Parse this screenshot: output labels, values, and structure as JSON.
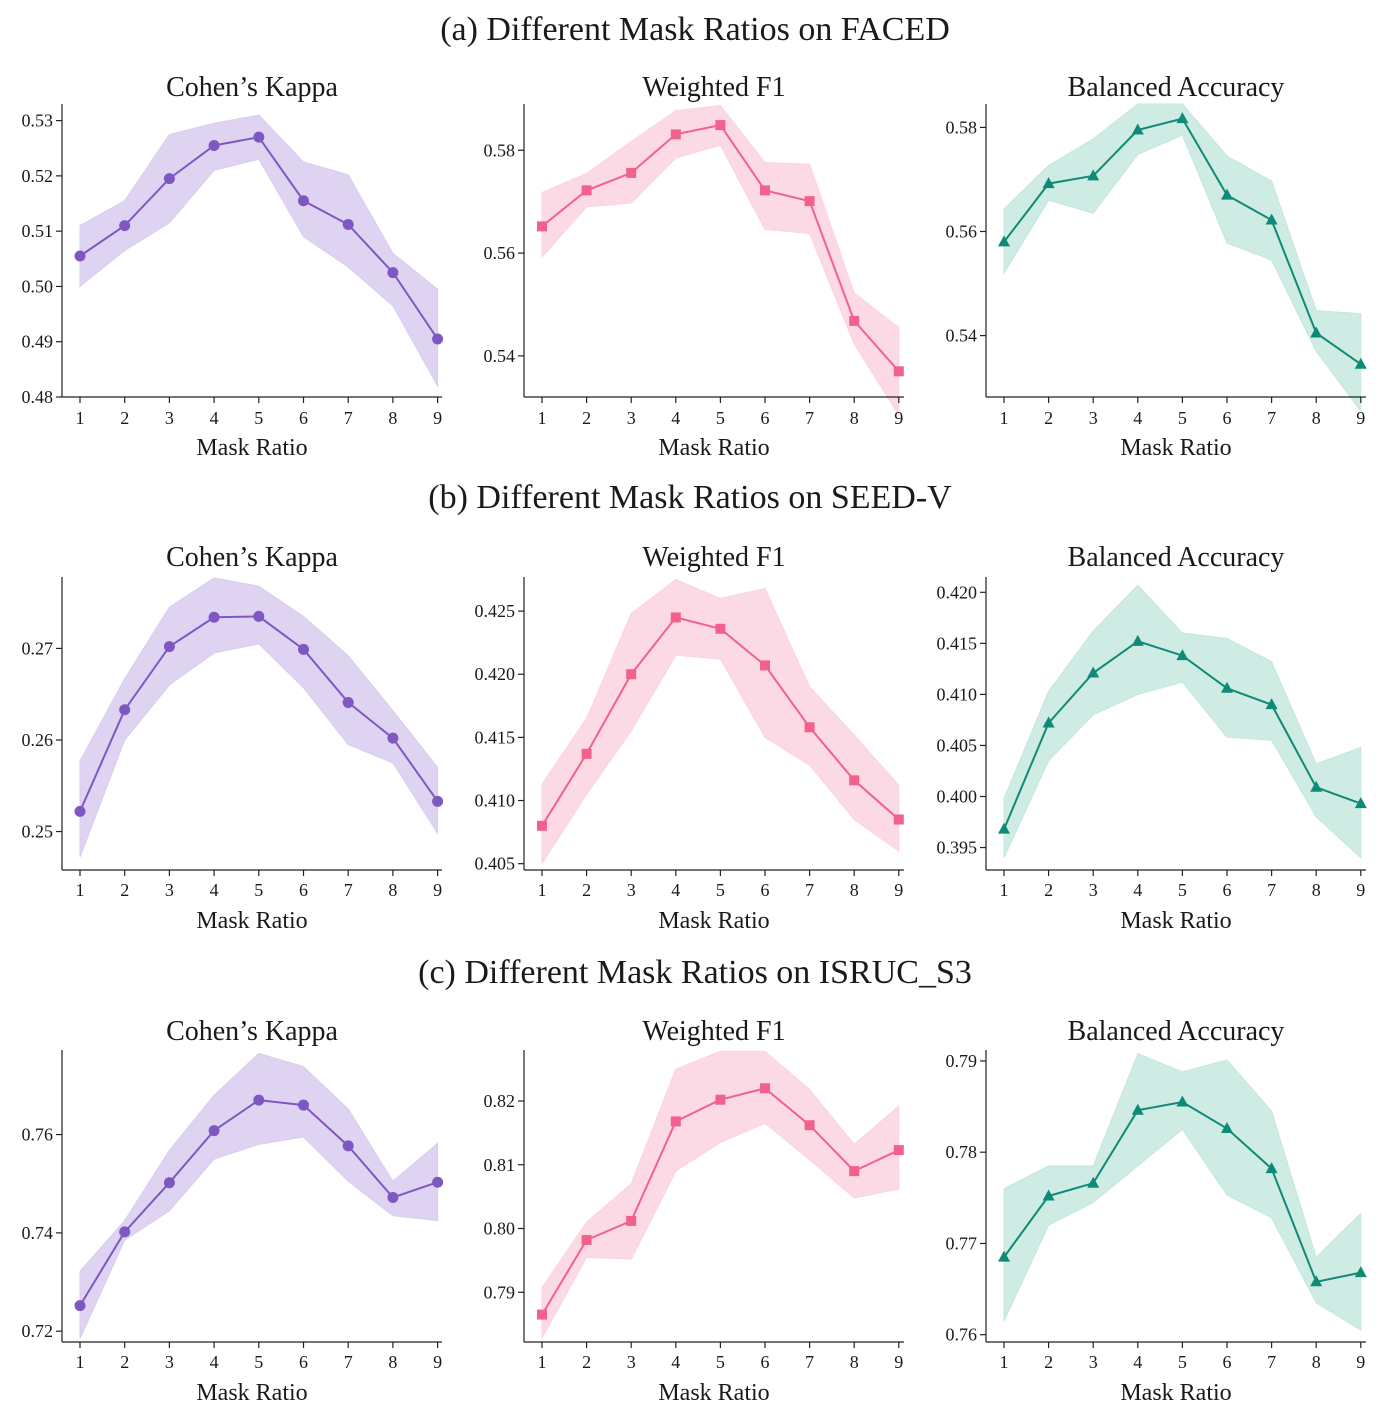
{
  "row_titles": [
    "(a) Different Mask Ratios on FACED",
    "(b) Different Mask Ratios on SEED-V",
    "(c) Different Mask Ratios on ISRUC_S3"
  ],
  "chart_data": [
    {
      "type": "line",
      "row": 0,
      "col": 0,
      "title": "Cohen’s Kappa",
      "xlabel": "Mask Ratio",
      "ylabel": "",
      "x": [
        1,
        2,
        3,
        4,
        5,
        6,
        7,
        8,
        9
      ],
      "series": [
        {
          "name": "Cohen’s Kappa",
          "values": [
            0.5055,
            0.511,
            0.5195,
            0.5255,
            0.527,
            0.5155,
            0.5112,
            0.5025,
            0.4905
          ],
          "lower": [
            0.5,
            0.5065,
            0.5115,
            0.521,
            0.523,
            0.509,
            0.5035,
            0.4965,
            0.482
          ],
          "upper": [
            0.511,
            0.5155,
            0.5275,
            0.5295,
            0.531,
            0.5225,
            0.5202,
            0.506,
            0.4995
          ]
        }
      ],
      "ylim": [
        0.48,
        0.533
      ],
      "yticks": [
        0.48,
        0.49,
        0.5,
        0.51,
        0.52,
        0.53
      ],
      "ytick_labels": [
        "0.48",
        "0.49",
        "0.50",
        "0.51",
        "0.52",
        "0.53"
      ],
      "color": "#7e57c2",
      "fill": "#d8cdef",
      "marker": "circle"
    },
    {
      "type": "line",
      "row": 0,
      "col": 1,
      "title": "Weighted F1",
      "xlabel": "Mask Ratio",
      "ylabel": "",
      "x": [
        1,
        2,
        3,
        4,
        5,
        6,
        7,
        8,
        9
      ],
      "series": [
        {
          "name": "Weighted F1",
          "values": [
            0.5652,
            0.5722,
            0.5756,
            0.5831,
            0.5849,
            0.5722,
            0.5701,
            0.5468,
            0.537
          ],
          "lower": [
            0.5592,
            0.569,
            0.5697,
            0.5785,
            0.581,
            0.5646,
            0.5638,
            0.5423,
            0.5285
          ],
          "upper": [
            0.5718,
            0.5755,
            0.5817,
            0.5877,
            0.5887,
            0.5776,
            0.5773,
            0.5522,
            0.5455
          ]
        }
      ],
      "ylim": [
        0.532,
        0.589
      ],
      "yticks": [
        0.54,
        0.56,
        0.58
      ],
      "ytick_labels": [
        "0.54",
        "0.56",
        "0.58"
      ],
      "color": "#f2618c",
      "fill": "#fbd3e0",
      "marker": "square"
    },
    {
      "type": "line",
      "row": 0,
      "col": 2,
      "title": "Balanced Accuracy",
      "xlabel": "Mask Ratio",
      "ylabel": "",
      "x": [
        1,
        2,
        3,
        4,
        5,
        6,
        7,
        8,
        9
      ],
      "series": [
        {
          "name": "Balanced Accuracy",
          "values": [
            0.558,
            0.5692,
            0.5707,
            0.5795,
            0.5817,
            0.567,
            0.5622,
            0.5405,
            0.5345
          ],
          "lower": [
            0.552,
            0.566,
            0.5635,
            0.5748,
            0.5785,
            0.5578,
            0.5545,
            0.537,
            0.5255
          ],
          "upper": [
            0.5643,
            0.5727,
            0.5778,
            0.5845,
            0.5845,
            0.5745,
            0.5697,
            0.5448,
            0.5442
          ]
        }
      ],
      "ylim": [
        0.5282,
        0.5845
      ],
      "yticks": [
        0.54,
        0.56,
        0.58
      ],
      "ytick_labels": [
        "0.54",
        "0.56",
        "0.58"
      ],
      "color": "#0f8a76",
      "fill": "#c5e7df",
      "marker": "triangle"
    },
    {
      "type": "line",
      "row": 1,
      "col": 0,
      "title": "Cohen’s Kappa",
      "xlabel": "Mask Ratio",
      "ylabel": "",
      "x": [
        1,
        2,
        3,
        4,
        5,
        6,
        7,
        8,
        9
      ],
      "series": [
        {
          "name": "Cohen’s Kappa",
          "values": [
            0.2522,
            0.2633,
            0.2702,
            0.2734,
            0.2735,
            0.2699,
            0.2641,
            0.2602,
            0.2533
          ],
          "lower": [
            0.2472,
            0.26,
            0.266,
            0.2695,
            0.2705,
            0.2657,
            0.2595,
            0.2575,
            0.2498
          ],
          "upper": [
            0.2577,
            0.2667,
            0.2745,
            0.2777,
            0.2768,
            0.2735,
            0.2692,
            0.2632,
            0.257
          ]
        }
      ],
      "ylim": [
        0.2458,
        0.2778
      ],
      "yticks": [
        0.25,
        0.26,
        0.27
      ],
      "ytick_labels": [
        "0.25",
        "0.26",
        "0.27"
      ],
      "color": "#7e57c2",
      "fill": "#d8cdef",
      "marker": "circle"
    },
    {
      "type": "line",
      "row": 1,
      "col": 1,
      "title": "Weighted F1",
      "xlabel": "Mask Ratio",
      "ylabel": "",
      "x": [
        1,
        2,
        3,
        4,
        5,
        6,
        7,
        8,
        9
      ],
      "series": [
        {
          "name": "Weighted F1",
          "values": [
            0.408,
            0.4137,
            0.42,
            0.4245,
            0.4236,
            0.4207,
            0.4158,
            0.4116,
            0.4085
          ],
          "lower": [
            0.405,
            0.4105,
            0.4155,
            0.4215,
            0.4212,
            0.415,
            0.4128,
            0.4085,
            0.406
          ],
          "upper": [
            0.4113,
            0.4165,
            0.4248,
            0.4275,
            0.426,
            0.4268,
            0.419,
            0.4152,
            0.4112
          ]
        }
      ],
      "ylim": [
        0.4045,
        0.4277
      ],
      "yticks": [
        0.405,
        0.41,
        0.415,
        0.42,
        0.425
      ],
      "ytick_labels": [
        "0.405",
        "0.410",
        "0.415",
        "0.420",
        "0.425"
      ],
      "color": "#f2618c",
      "fill": "#fbd3e0",
      "marker": "square"
    },
    {
      "type": "line",
      "row": 1,
      "col": 2,
      "title": "Balanced Accuracy",
      "xlabel": "Mask Ratio",
      "ylabel": "",
      "x": [
        1,
        2,
        3,
        4,
        5,
        6,
        7,
        8,
        9
      ],
      "series": [
        {
          "name": "Balanced Accuracy",
          "values": [
            0.3968,
            0.4072,
            0.4121,
            0.4152,
            0.4138,
            0.4106,
            0.409,
            0.4009,
            0.3993
          ],
          "lower": [
            0.394,
            0.4035,
            0.408,
            0.41,
            0.4112,
            0.4058,
            0.4055,
            0.398,
            0.394
          ],
          "upper": [
            0.3998,
            0.4103,
            0.4162,
            0.4207,
            0.416,
            0.4155,
            0.4132,
            0.4032,
            0.4048
          ]
        }
      ],
      "ylim": [
        0.3928,
        0.4215
      ],
      "yticks": [
        0.395,
        0.4,
        0.405,
        0.41,
        0.415,
        0.42
      ],
      "ytick_labels": [
        "0.395",
        "0.400",
        "0.405",
        "0.410",
        "0.415",
        "0.420"
      ],
      "color": "#0f8a76",
      "fill": "#c5e7df",
      "marker": "triangle"
    },
    {
      "type": "line",
      "row": 2,
      "col": 0,
      "title": "Cohen’s Kappa",
      "xlabel": "Mask Ratio",
      "ylabel": "",
      "x": [
        1,
        2,
        3,
        4,
        5,
        6,
        7,
        8,
        9
      ],
      "series": [
        {
          "name": "Cohen’s Kappa",
          "values": [
            0.7252,
            0.7402,
            0.7502,
            0.7608,
            0.767,
            0.766,
            0.7577,
            0.7472,
            0.7503
          ],
          "lower": [
            0.7185,
            0.7385,
            0.7445,
            0.755,
            0.758,
            0.7595,
            0.7505,
            0.7435,
            0.7425
          ],
          "upper": [
            0.7322,
            0.7425,
            0.7568,
            0.768,
            0.7765,
            0.7738,
            0.7652,
            0.7505,
            0.7582
          ]
        }
      ],
      "ylim": [
        0.7178,
        0.7772
      ],
      "yticks": [
        0.72,
        0.74,
        0.76
      ],
      "ytick_labels": [
        "0.72",
        "0.74",
        "0.76"
      ],
      "color": "#7e57c2",
      "fill": "#d8cdef",
      "marker": "circle"
    },
    {
      "type": "line",
      "row": 2,
      "col": 1,
      "title": "Weighted F1",
      "xlabel": "Mask Ratio",
      "ylabel": "",
      "x": [
        1,
        2,
        3,
        4,
        5,
        6,
        7,
        8,
        9
      ],
      "series": [
        {
          "name": "Weighted F1",
          "values": [
            0.7865,
            0.7982,
            0.8012,
            0.8168,
            0.8202,
            0.822,
            0.8162,
            0.809,
            0.8123
          ],
          "lower": [
            0.7828,
            0.7955,
            0.7952,
            0.809,
            0.8135,
            0.8165,
            0.8108,
            0.8048,
            0.8062
          ],
          "upper": [
            0.7907,
            0.801,
            0.807,
            0.825,
            0.8278,
            0.8278,
            0.8218,
            0.8132,
            0.8192
          ]
        }
      ],
      "ylim": [
        0.7822,
        0.828
      ],
      "yticks": [
        0.79,
        0.8,
        0.81,
        0.82
      ],
      "ytick_labels": [
        "0.79",
        "0.80",
        "0.81",
        "0.82"
      ],
      "color": "#f2618c",
      "fill": "#fbd3e0",
      "marker": "square"
    },
    {
      "type": "line",
      "row": 2,
      "col": 2,
      "title": "Balanced Accuracy",
      "xlabel": "Mask Ratio",
      "ylabel": "",
      "x": [
        1,
        2,
        3,
        4,
        5,
        6,
        7,
        8,
        9
      ],
      "series": [
        {
          "name": "Balanced Accuracy",
          "values": [
            0.7685,
            0.7752,
            0.7766,
            0.7846,
            0.7855,
            0.7826,
            0.7782,
            0.7658,
            0.7668
          ],
          "lower": [
            0.7615,
            0.772,
            0.7745,
            0.7785,
            0.7825,
            0.7753,
            0.7728,
            0.7635,
            0.7605
          ],
          "upper": [
            0.776,
            0.7785,
            0.7785,
            0.7908,
            0.7888,
            0.7901,
            0.7845,
            0.7685,
            0.7733
          ]
        }
      ],
      "ylim": [
        0.7592,
        0.7912
      ],
      "yticks": [
        0.76,
        0.77,
        0.78,
        0.79
      ],
      "ytick_labels": [
        "0.76",
        "0.77",
        "0.78",
        "0.79"
      ],
      "color": "#0f8a76",
      "fill": "#c5e7df",
      "marker": "triangle"
    }
  ]
}
